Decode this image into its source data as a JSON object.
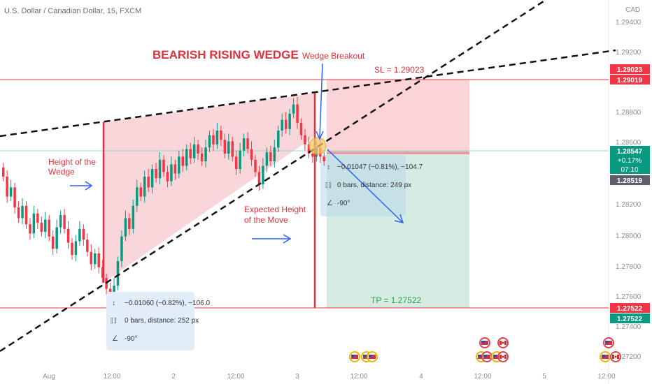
{
  "header": {
    "symbol_title": "U.S. Dollar / Canadian Dollar, 15, FXCM"
  },
  "chart_data": {
    "type": "candlestick",
    "title": "BEARISH RISING WEDGE",
    "currency_label": "CAD",
    "ylim": [
      1.271,
      1.296
    ],
    "y_ticks": [
      "1.29400",
      "1.29200",
      "1.28800",
      "1.28600",
      "1.28200",
      "1.28000",
      "1.27800",
      "1.27600",
      "1.27400",
      "1.27200"
    ],
    "x_ticks": [
      "Aug",
      "12:00",
      "2",
      "12:00",
      "3",
      "12:00",
      "4",
      "12:00",
      "5",
      "12:00"
    ],
    "price_closes": [
      1.2845,
      1.2832,
      1.2838,
      1.2825,
      1.2818,
      1.2826,
      1.2814,
      1.2808,
      1.2821,
      1.2815,
      1.2809,
      1.2817,
      1.2806,
      1.2798,
      1.2812,
      1.282,
      1.2811,
      1.2802,
      1.2794,
      1.2803,
      1.2811,
      1.2804,
      1.2796,
      1.2788,
      1.2795,
      1.2786,
      1.2779,
      1.2772,
      1.2768,
      1.2774,
      1.279,
      1.2806,
      1.2818,
      1.2811,
      1.2826,
      1.2838,
      1.2832,
      1.2845,
      1.2838,
      1.285,
      1.2844,
      1.2856,
      1.2848,
      1.2842,
      1.2853,
      1.2847,
      1.2858,
      1.2852,
      1.2863,
      1.2857,
      1.2866,
      1.286,
      1.2855,
      1.2864,
      1.2872,
      1.2866,
      1.2875,
      1.2869,
      1.286,
      1.2868,
      1.2858,
      1.285,
      1.2862,
      1.287,
      1.2863,
      1.2856,
      1.2848,
      1.284,
      1.2852,
      1.2861,
      1.2855,
      1.2864,
      1.2875,
      1.2882,
      1.2876,
      1.2886,
      1.2892,
      1.288,
      1.2872,
      1.2866,
      1.286,
      1.2858,
      1.2864,
      1.2858,
      1.2855
    ],
    "annotations": {
      "breakout_label": "Wedge Breakout",
      "height_wedge_line1": "Height of the",
      "height_wedge_line2": "Wedge",
      "expected_height_line1": "Expected Height",
      "expected_height_line2": "of the Move",
      "stop_loss": "SL = 1.29023",
      "take_profit": "TP = 1.27522"
    },
    "measure_boxes": [
      {
        "line1": "−0.01060 (−0.82%), −106.0",
        "line2": "0 bars, distance: 252 px",
        "line3": "-90°"
      },
      {
        "line1": "−0.01047 (−0.81%), −104.7",
        "line2": "0 bars, distance: 249 px",
        "line3": "-90°"
      }
    ],
    "price_tags": [
      {
        "text": "1.29023",
        "color": "#f23645"
      },
      {
        "text": "1.29019",
        "color": "#f23645"
      },
      {
        "text": "1.28547",
        "color": "#089981"
      },
      {
        "text": "+0.17%",
        "color": "#089981"
      },
      {
        "text": "07:10",
        "color": "#089981"
      },
      {
        "text": "1.28519",
        "color": "#5d606b"
      },
      {
        "text": "1.27522",
        "color": "#f23645"
      },
      {
        "text": "1.27522",
        "color": "#089981"
      }
    ],
    "colors": {
      "up": "#089981",
      "down": "#f23645",
      "annotation_red": "#e0323e",
      "annotation_blue": "#2962ff",
      "tp_green": "#2e9e4f"
    }
  }
}
